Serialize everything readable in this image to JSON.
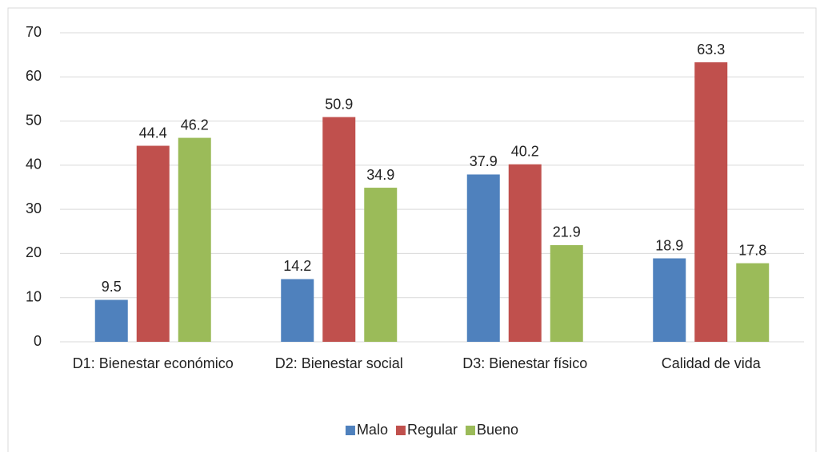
{
  "chart_data": {
    "type": "bar",
    "categories": [
      "D1: Bienestar económico",
      "D2: Bienestar social",
      "D3: Bienestar físico",
      "Calidad de vida"
    ],
    "series": [
      {
        "name": "Malo",
        "color": "#4f81bd",
        "values": [
          9.5,
          14.2,
          37.9,
          18.9
        ]
      },
      {
        "name": "Regular",
        "color": "#c0504d",
        "values": [
          44.4,
          50.9,
          40.2,
          63.3
        ]
      },
      {
        "name": "Bueno",
        "color": "#9bbb59",
        "values": [
          46.2,
          34.9,
          21.9,
          17.8
        ]
      }
    ],
    "ylim": [
      0,
      70
    ],
    "yticks": [
      0,
      10,
      20,
      30,
      40,
      50,
      60,
      70
    ],
    "grid": true,
    "legend": "bottom"
  }
}
